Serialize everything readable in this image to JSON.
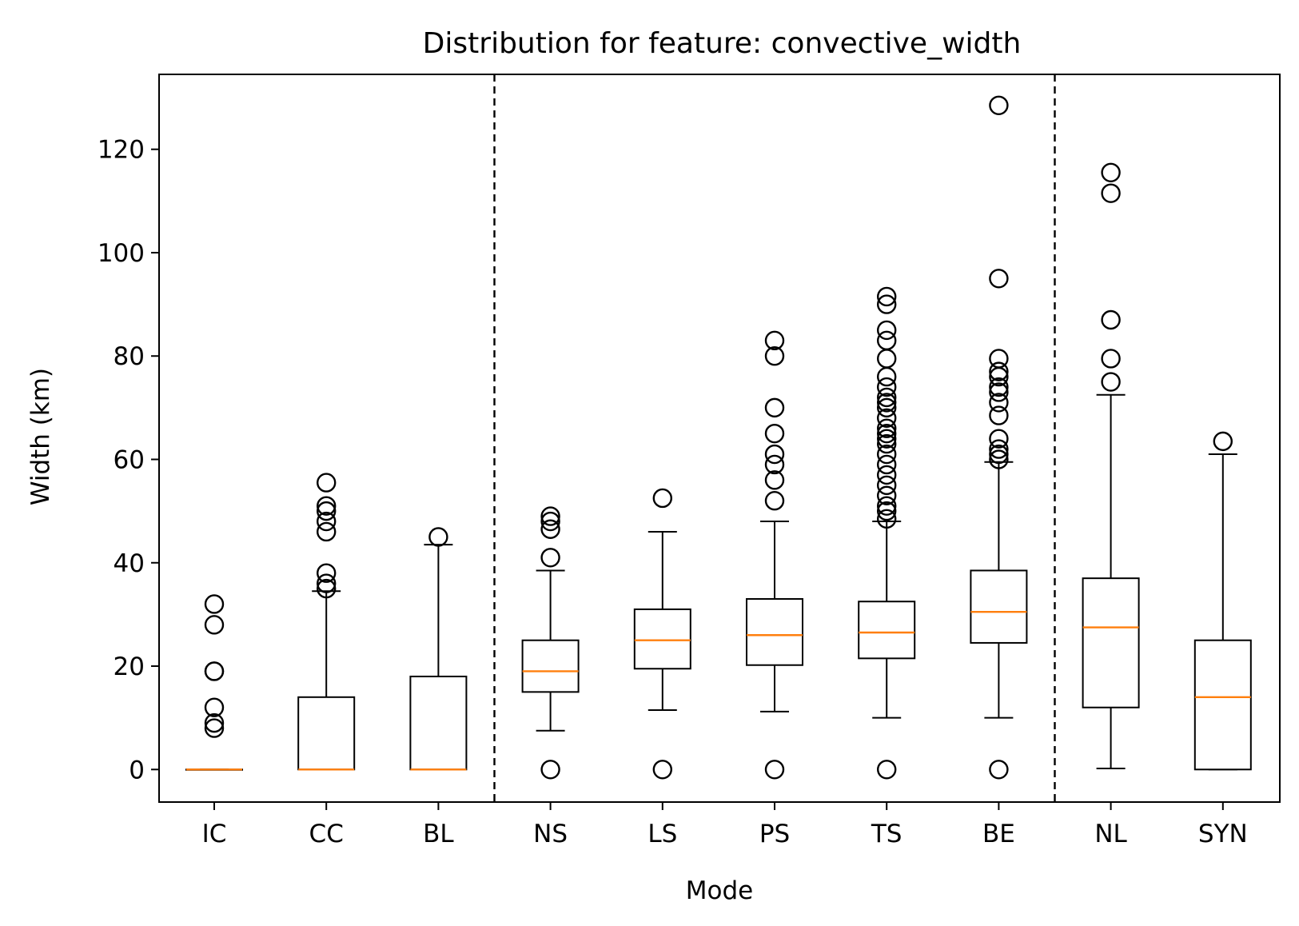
{
  "chart_data": {
    "type": "box",
    "title": "Distribution for feature: convective_width",
    "xlabel": "Mode",
    "ylabel": "Width (km)",
    "ylim": [
      -6.3,
      134.5
    ],
    "yticks": [
      0,
      20,
      40,
      60,
      80,
      100,
      120
    ],
    "grid": false,
    "separators_after_category_index": [
      2,
      7
    ],
    "colors": {
      "box": "#000000",
      "median": "#ff7f0e",
      "separator": "#000000"
    },
    "categories": [
      "IC",
      "CC",
      "BL",
      "NS",
      "LS",
      "PS",
      "TS",
      "BE",
      "NL",
      "SYN"
    ],
    "boxes": [
      {
        "label": "IC",
        "whislo": 0,
        "q1": 0,
        "median": 0,
        "q3": 0,
        "whishi": 0,
        "fliers": [
          8,
          9,
          12,
          19,
          19,
          28,
          32
        ]
      },
      {
        "label": "CC",
        "whislo": 0,
        "q1": 0,
        "median": 0,
        "q3": 14,
        "whishi": 34.5,
        "fliers": [
          35,
          36,
          38,
          46,
          48,
          50,
          51,
          55.5
        ]
      },
      {
        "label": "BL",
        "whislo": 0,
        "q1": 0,
        "median": 0,
        "q3": 18,
        "whishi": 43.5,
        "fliers": [
          45
        ]
      },
      {
        "label": "NS",
        "whislo": 7.5,
        "q1": 15,
        "median": 19,
        "q3": 25,
        "whishi": 38.5,
        "fliers": [
          0,
          41,
          46.5,
          48,
          49
        ]
      },
      {
        "label": "LS",
        "whislo": 11.5,
        "q1": 19.5,
        "median": 25,
        "q3": 31,
        "whishi": 46,
        "fliers": [
          0,
          52.5
        ]
      },
      {
        "label": "PS",
        "whislo": 11.2,
        "q1": 20.2,
        "median": 26,
        "q3": 33,
        "whishi": 48,
        "fliers": [
          0,
          52,
          56,
          59,
          61,
          65,
          70,
          80,
          83
        ]
      },
      {
        "label": "TS",
        "whislo": 10,
        "q1": 21.5,
        "median": 26.5,
        "q3": 32.5,
        "whishi": 48,
        "fliers": [
          0,
          48.5,
          50,
          51,
          53,
          55,
          57,
          59,
          61,
          63,
          64,
          65,
          66,
          68,
          70,
          71,
          72,
          74,
          76,
          79.5,
          83,
          85,
          90,
          91.5
        ]
      },
      {
        "label": "BE",
        "whislo": 10,
        "q1": 24.5,
        "median": 30.5,
        "q3": 38.5,
        "whishi": 59.5,
        "fliers": [
          0,
          60,
          61,
          62,
          64,
          68.5,
          71,
          73,
          74,
          76,
          77,
          79.5,
          95,
          128.5
        ]
      },
      {
        "label": "NL",
        "whislo": 0.2,
        "q1": 12,
        "median": 27.5,
        "q3": 37,
        "whishi": 72.5,
        "fliers": [
          75,
          79.5,
          87,
          111.5,
          115.5
        ]
      },
      {
        "label": "SYN",
        "whislo": 0,
        "q1": 0,
        "median": 14,
        "q3": 25,
        "whishi": 61,
        "fliers": [
          63.5
        ]
      }
    ]
  }
}
